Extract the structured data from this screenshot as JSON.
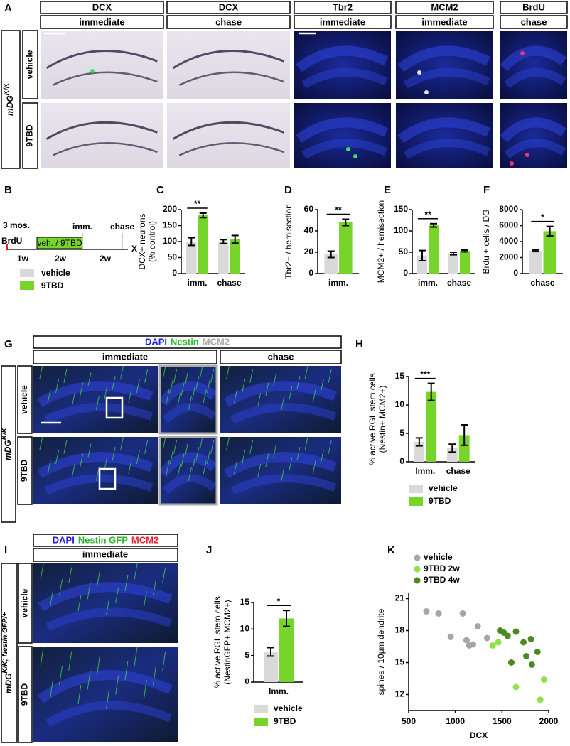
{
  "panels": {
    "A": {
      "panel": "A",
      "columns": [
        {
          "stain": "DCX",
          "color": "#3a28b0",
          "timepoint": "immediate"
        },
        {
          "stain": "DCX",
          "color": "#3a28b0",
          "timepoint": "chase"
        },
        {
          "stain": "Tbr2",
          "color": "#2db52d",
          "timepoint": "immediate"
        },
        {
          "stain": "MCM2",
          "color": "#aaaaaa",
          "timepoint": "immediate"
        },
        {
          "stain": "BrdU",
          "color": "#e8202a",
          "timepoint": "chase"
        }
      ],
      "genotype": {
        "base": "mDG",
        "sup": "K/K"
      },
      "rows": [
        "vehicle",
        "9TBD"
      ]
    },
    "B": {
      "panel": "B",
      "age": "3 mos.",
      "pulse": "BrdU",
      "treatment": "veh. / 9TBD",
      "imm": "imm.",
      "chase": "chase",
      "durations": [
        "1w",
        "2w",
        "2w"
      ],
      "end": "X",
      "legend": [
        {
          "name": "vehicle",
          "color": "#d9d9d9"
        },
        {
          "name": "9TBD",
          "color": "#77d42a"
        }
      ]
    },
    "G": {
      "panel": "G",
      "stains": [
        {
          "text": "DAPI",
          "color": "#2222dd"
        },
        {
          "text": "Nestin",
          "color": "#2db52d"
        },
        {
          "text": "MCM2",
          "color": "#aaaaaa"
        }
      ],
      "timepoints": [
        "immediate",
        "chase"
      ],
      "genotype": {
        "base": "mDG",
        "sup": "K/K"
      },
      "rows": [
        "vehicle",
        "9TBD"
      ]
    },
    "I": {
      "panel": "I",
      "stains": [
        {
          "text": "DAPI",
          "color": "#2222dd"
        },
        {
          "text": "Nestin GFP",
          "color": "#2db52d"
        },
        {
          "text": "MCM2",
          "color": "#e8202a"
        }
      ],
      "timepoints": [
        "immediate"
      ],
      "genotype": {
        "base": "mDG",
        "sup": "K/K; Nestin GFP/+"
      },
      "rows": [
        "vehicle",
        "9TBD"
      ]
    }
  },
  "chart_data": [
    {
      "type": "bar",
      "panel": "C",
      "ylabel": [
        "DCX+ neurons",
        "(% control)"
      ],
      "categories": [
        "imm.",
        "chase"
      ],
      "series": [
        {
          "name": "vehicle",
          "color": "#d9d9d9",
          "values": [
            100,
            100
          ],
          "errors": [
            12,
            6
          ]
        },
        {
          "name": "9TBD",
          "color": "#77d42a",
          "values": [
            182,
            107
          ],
          "errors": [
            7,
            12
          ]
        }
      ],
      "significance": [
        {
          "label": "**",
          "category": 0
        }
      ],
      "ylim": [
        0,
        200
      ],
      "yticks": [
        0,
        50,
        100,
        150,
        200
      ]
    },
    {
      "type": "bar",
      "panel": "D",
      "ylabel": [
        "Tbr2+ / hemisection"
      ],
      "categories": [
        "imm."
      ],
      "series": [
        {
          "name": "vehicle",
          "color": "#d9d9d9",
          "values": [
            18
          ],
          "errors": [
            3
          ]
        },
        {
          "name": "9TBD",
          "color": "#77d42a",
          "values": [
            48
          ],
          "errors": [
            3
          ]
        }
      ],
      "significance": [
        {
          "label": "**",
          "category": 0
        }
      ],
      "ylim": [
        0,
        60
      ],
      "yticks": [
        0,
        20,
        40,
        60
      ]
    },
    {
      "type": "bar",
      "panel": "E",
      "ylabel": [
        "MCM2+ / hemisection"
      ],
      "categories": [
        "imm.",
        "chase"
      ],
      "series": [
        {
          "name": "vehicle",
          "color": "#d9d9d9",
          "values": [
            42,
            47
          ],
          "errors": [
            12,
            3
          ]
        },
        {
          "name": "9TBD",
          "color": "#77d42a",
          "values": [
            113,
            53
          ],
          "errors": [
            4,
            2
          ]
        }
      ],
      "significance": [
        {
          "label": "**",
          "category": 0
        }
      ],
      "ylim": [
        0,
        150
      ],
      "yticks": [
        0,
        50,
        100,
        150
      ]
    },
    {
      "type": "bar",
      "panel": "F",
      "ylabel": [
        "Brdu + cells / DG"
      ],
      "categories": [
        "chase"
      ],
      "series": [
        {
          "name": "vehicle",
          "color": "#d9d9d9",
          "values": [
            2850
          ],
          "errors": [
            100
          ]
        },
        {
          "name": "9TBD",
          "color": "#77d42a",
          "values": [
            5300
          ],
          "errors": [
            600
          ]
        }
      ],
      "significance": [
        {
          "label": "*",
          "category": 0
        }
      ],
      "ylim": [
        0,
        8000
      ],
      "yticks": [
        0,
        2000,
        4000,
        6000,
        8000
      ]
    },
    {
      "type": "bar",
      "panel": "H",
      "ylabel": [
        "% active RGL stem cells",
        "(Nestin+ MCM2+)"
      ],
      "categories": [
        "Imm.",
        "chase"
      ],
      "series": [
        {
          "name": "vehicle",
          "color": "#d9d9d9",
          "values": [
            3.5,
            2.4
          ],
          "errors": [
            0.7,
            0.7
          ]
        },
        {
          "name": "9TBD",
          "color": "#77d42a",
          "values": [
            12.3,
            4.7
          ],
          "errors": [
            1.5,
            1.8
          ]
        }
      ],
      "significance": [
        {
          "label": "***",
          "category": 0
        }
      ],
      "legend": "bottom",
      "ylim": [
        0,
        15
      ],
      "yticks": [
        0,
        5,
        10,
        15
      ]
    },
    {
      "type": "bar",
      "panel": "J",
      "ylabel": [
        "% active RGL stem cells",
        "(NestinGFP+ MCM2+)"
      ],
      "categories": [
        "Imm."
      ],
      "series": [
        {
          "name": "vehicle",
          "color": "#d9d9d9",
          "values": [
            5.7
          ],
          "errors": [
            0.8
          ]
        },
        {
          "name": "9TBD",
          "color": "#77d42a",
          "values": [
            12
          ],
          "errors": [
            1.5
          ]
        }
      ],
      "significance": [
        {
          "label": "*",
          "category": 0
        }
      ],
      "legend": "bottom",
      "ylim": [
        0,
        15
      ],
      "yticks": [
        0,
        5,
        10,
        15
      ]
    },
    {
      "type": "scatter",
      "panel": "K",
      "ylabel": [
        "spines / 10μm dendrite"
      ],
      "xlabel": "DCX",
      "series": [
        {
          "name": "vehicle",
          "color": "#a6a6a6",
          "x": [
            690,
            820,
            950,
            1080,
            1120,
            1150,
            1190,
            1240,
            1340
          ],
          "values": [
            19.8,
            19.6,
            17.4,
            19.6,
            17.1,
            16.6,
            16.7,
            18.4,
            17.3
          ]
        },
        {
          "name": "9TBD 2w",
          "color": "#8fe04a",
          "x": [
            1400,
            1460,
            1650,
            1910,
            1950
          ],
          "values": [
            16.6,
            16.9,
            12.7,
            11.5,
            13.4
          ]
        },
        {
          "name": "9TBD 4w",
          "color": "#4a8a1e",
          "x": [
            1480,
            1520,
            1560,
            1600,
            1650,
            1730,
            1760,
            1810,
            1820,
            1880
          ],
          "values": [
            18.0,
            17.8,
            17.5,
            15.0,
            17.9,
            16.9,
            15.6,
            17.2,
            14.8,
            16.0
          ]
        }
      ],
      "legend": "top-left",
      "xlim": [
        500,
        2000
      ],
      "xticks": [
        500,
        1000,
        1500,
        2000
      ],
      "ylim": [
        10.5,
        21.5
      ],
      "yticks": [
        12,
        15,
        18,
        21
      ]
    }
  ]
}
